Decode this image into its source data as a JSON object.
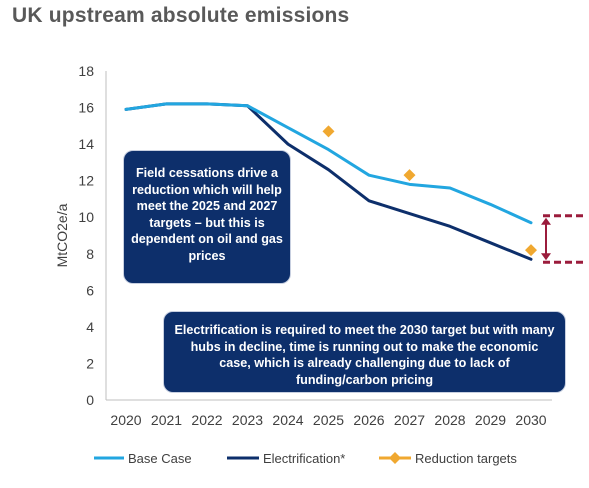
{
  "title": "UK upstream absolute emissions",
  "callouts": {
    "field_cessations": "Field cessations drive a reduction which will help meet the 2025 and 2027 targets – but this is dependent on oil and gas prices",
    "electrification": "Electrification is required to meet the 2030 target but with many hubs in decline, time is running out to make the economic case, which is already challenging due to lack of funding/carbon pricing"
  },
  "colors": {
    "base_case": "#22a6e0",
    "electrification": "#0d2f6b",
    "reduction_targets": "#f0a830",
    "range_marker": "#9b1c3c",
    "axis": "#bfbfbf",
    "text": "#404040"
  },
  "chart_data": {
    "type": "line",
    "ylabel": "MtCO2e/a",
    "xlabel": "",
    "ylim": [
      0,
      18
    ],
    "yticks": [
      0,
      2,
      4,
      6,
      8,
      10,
      12,
      14,
      16,
      18
    ],
    "x": [
      "2020",
      "2021",
      "2022",
      "2023",
      "2024",
      "2025",
      "2026",
      "2027",
      "2028",
      "2029",
      "2030"
    ],
    "grid": false,
    "legend_position": "bottom",
    "series": [
      {
        "name": "Base Case",
        "values": [
          15.9,
          16.2,
          16.2,
          16.1,
          14.9,
          13.7,
          12.3,
          11.8,
          11.6,
          10.7,
          9.7
        ]
      },
      {
        "name": "Electrification*",
        "values": [
          15.9,
          16.2,
          16.2,
          16.1,
          14.0,
          12.6,
          10.9,
          10.2,
          9.5,
          8.6,
          7.7
        ]
      }
    ],
    "targets": {
      "name": "Reduction targets",
      "points": [
        {
          "x": "2025",
          "y": 14.7
        },
        {
          "x": "2027",
          "y": 12.3
        },
        {
          "x": "2030",
          "y": 8.2
        }
      ]
    }
  }
}
